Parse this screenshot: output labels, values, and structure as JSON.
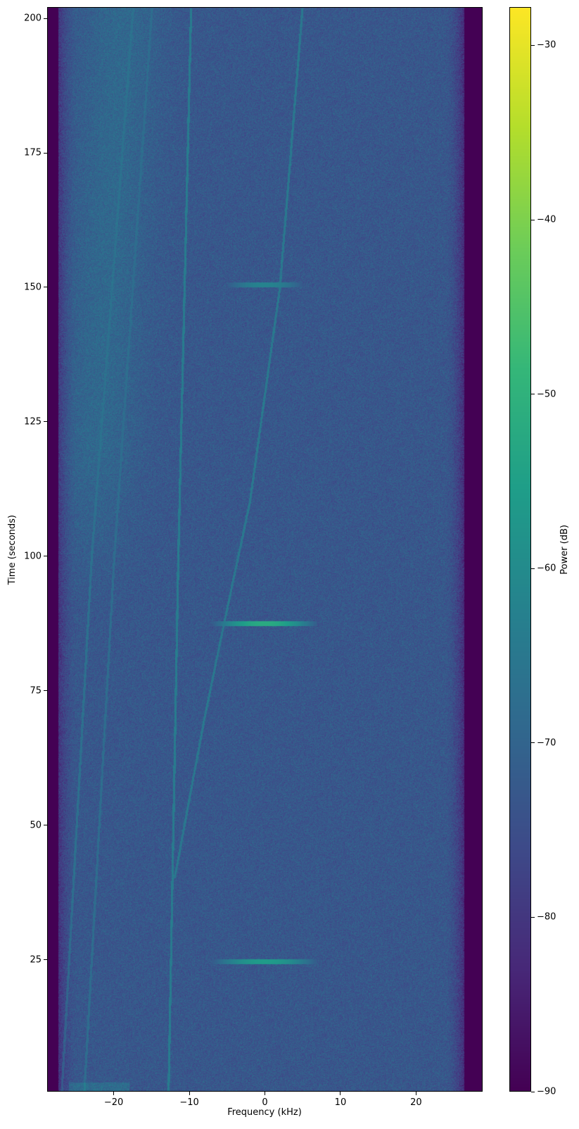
{
  "chart_data": {
    "type": "heatmap",
    "subtype": "spectrogram",
    "title": "",
    "xlabel": "Frequency (kHz)",
    "ylabel": "Time (seconds)",
    "xlim": [
      -28.8,
      28.8
    ],
    "ylim": [
      0.5,
      202.1
    ],
    "xticks": [
      -20,
      -10,
      0,
      10,
      20
    ],
    "xtick_labels": [
      "−20",
      "−10",
      "0",
      "10",
      "20"
    ],
    "yticks": [
      25,
      50,
      75,
      100,
      125,
      150,
      175,
      200
    ],
    "ytick_labels": [
      "25",
      "50",
      "75",
      "100",
      "125",
      "150",
      "175",
      "200"
    ],
    "grid": false,
    "colormap": "viridis",
    "colorbar": {
      "label": "Power (dB)",
      "range": [
        -90,
        -27.8
      ],
      "ticks": [
        -30,
        -40,
        -50,
        -60,
        -70,
        -80,
        -90
      ],
      "tick_labels": [
        "−30",
        "−40",
        "−50",
        "−60",
        "−70",
        "−80",
        "−90"
      ]
    },
    "background_level_db": -73,
    "passband_edges_khz": [
      -25,
      24
    ],
    "bursts": [
      {
        "time_s": 150.5,
        "freq_range_khz": [
          -4,
          4
        ],
        "peak_db": -62
      },
      {
        "time_s": 87.5,
        "freq_range_khz": [
          -6,
          6
        ],
        "peak_db": -52
      },
      {
        "time_s": 24.5,
        "freq_range_khz": [
          -6,
          6
        ],
        "peak_db": -56
      }
    ],
    "drifting_tones": [
      {
        "points": [
          [
            -12.8,
            0
          ],
          [
            -11.5,
            100
          ],
          [
            -9.8,
            202
          ]
        ],
        "peak_db": -64
      },
      {
        "points": [
          [
            -12,
            40
          ],
          [
            -8,
            70
          ],
          [
            -5.5,
            87
          ],
          [
            -2,
            110
          ],
          [
            2,
            150
          ],
          [
            5,
            202
          ]
        ],
        "peak_db": -65
      },
      {
        "points": [
          [
            -27,
            0
          ],
          [
            -23,
            100
          ],
          [
            -17.5,
            202
          ]
        ],
        "peak_db": -67
      },
      {
        "points": [
          [
            -24,
            0
          ],
          [
            -20,
            100
          ],
          [
            -15,
            202
          ]
        ],
        "peak_db": -68
      }
    ]
  }
}
